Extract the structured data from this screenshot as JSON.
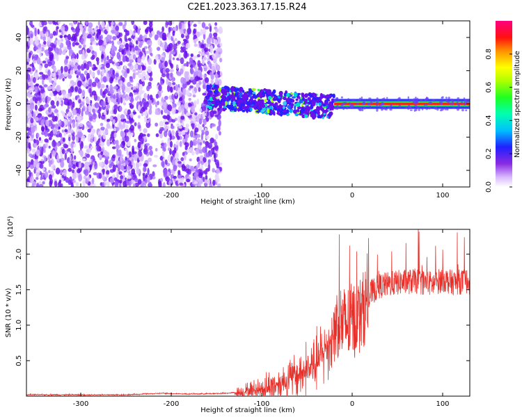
{
  "page_title": "C2E1.2023.363.17.15.R24",
  "chart_data": [
    {
      "type": "heatmap",
      "title": "C2E1.2023.363.17.15.R24",
      "xlabel": "Height of straight line (km)",
      "ylabel": "Frequency (Hz)",
      "xlim": [
        -360,
        130
      ],
      "ylim": [
        -50,
        50
      ],
      "x_ticks": [
        -300,
        -200,
        -100,
        0,
        100
      ],
      "y_ticks": [
        -40,
        -20,
        0,
        20,
        40
      ],
      "colorbar": {
        "label": "Normalized spectral amplitude",
        "range": [
          0.0,
          1.0
        ],
        "ticks": [
          0.0,
          0.2,
          0.4,
          0.6,
          0.8
        ],
        "colors": [
          "#ffffff",
          "#d8b8ff",
          "#8a2be2",
          "#2020ff",
          "#00c0ff",
          "#00ff80",
          "#80ff00",
          "#ffff00",
          "#ff8000",
          "#ff0000",
          "#ff0080"
        ]
      },
      "regions": [
        {
          "name": "diffuse",
          "x_range": [
            -360,
            -145
          ],
          "freq_range": [
            -50,
            50
          ],
          "amplitude": 0.15
        },
        {
          "name": "transition",
          "x_range": [
            -160,
            -20
          ],
          "freq_range": [
            -10,
            8
          ],
          "amplitude": 0.35
        },
        {
          "name": "line",
          "x_range": [
            -20,
            130
          ],
          "freq": 0,
          "amplitude": 0.95
        }
      ]
    },
    {
      "type": "line",
      "xlabel": "Height of straight line (km)",
      "ylabel": "SNR (10 * v/v)",
      "y_multiplier": "(x10⁴)",
      "xlim": [
        -360,
        130
      ],
      "ylim": [
        0,
        2.35
      ],
      "x_ticks": [
        -300,
        -200,
        -100,
        0,
        100
      ],
      "y_ticks": [
        0.5,
        1.0,
        1.5,
        2.0
      ],
      "y_tick_labels": [
        "0.5",
        "1.0",
        "1.5",
        "2.0"
      ],
      "color": "#e8302a",
      "points": [
        [
          -360,
          0.02
        ],
        [
          -250,
          0.02
        ],
        [
          -210,
          0.04
        ],
        [
          -180,
          0.03
        ],
        [
          -140,
          0.04
        ],
        [
          -120,
          0.06
        ],
        [
          -100,
          0.1
        ],
        [
          -80,
          0.18
        ],
        [
          -60,
          0.3
        ],
        [
          -40,
          0.45
        ],
        [
          -30,
          0.65
        ],
        [
          -20,
          0.9
        ],
        [
          -15,
          1.1
        ],
        [
          -10,
          1.0
        ],
        [
          0,
          1.05
        ],
        [
          10,
          1.15
        ],
        [
          20,
          1.45
        ],
        [
          30,
          1.55
        ],
        [
          50,
          1.6
        ],
        [
          70,
          1.62
        ],
        [
          90,
          1.58
        ],
        [
          100,
          1.65
        ],
        [
          110,
          1.6
        ],
        [
          130,
          1.62
        ]
      ]
    }
  ]
}
